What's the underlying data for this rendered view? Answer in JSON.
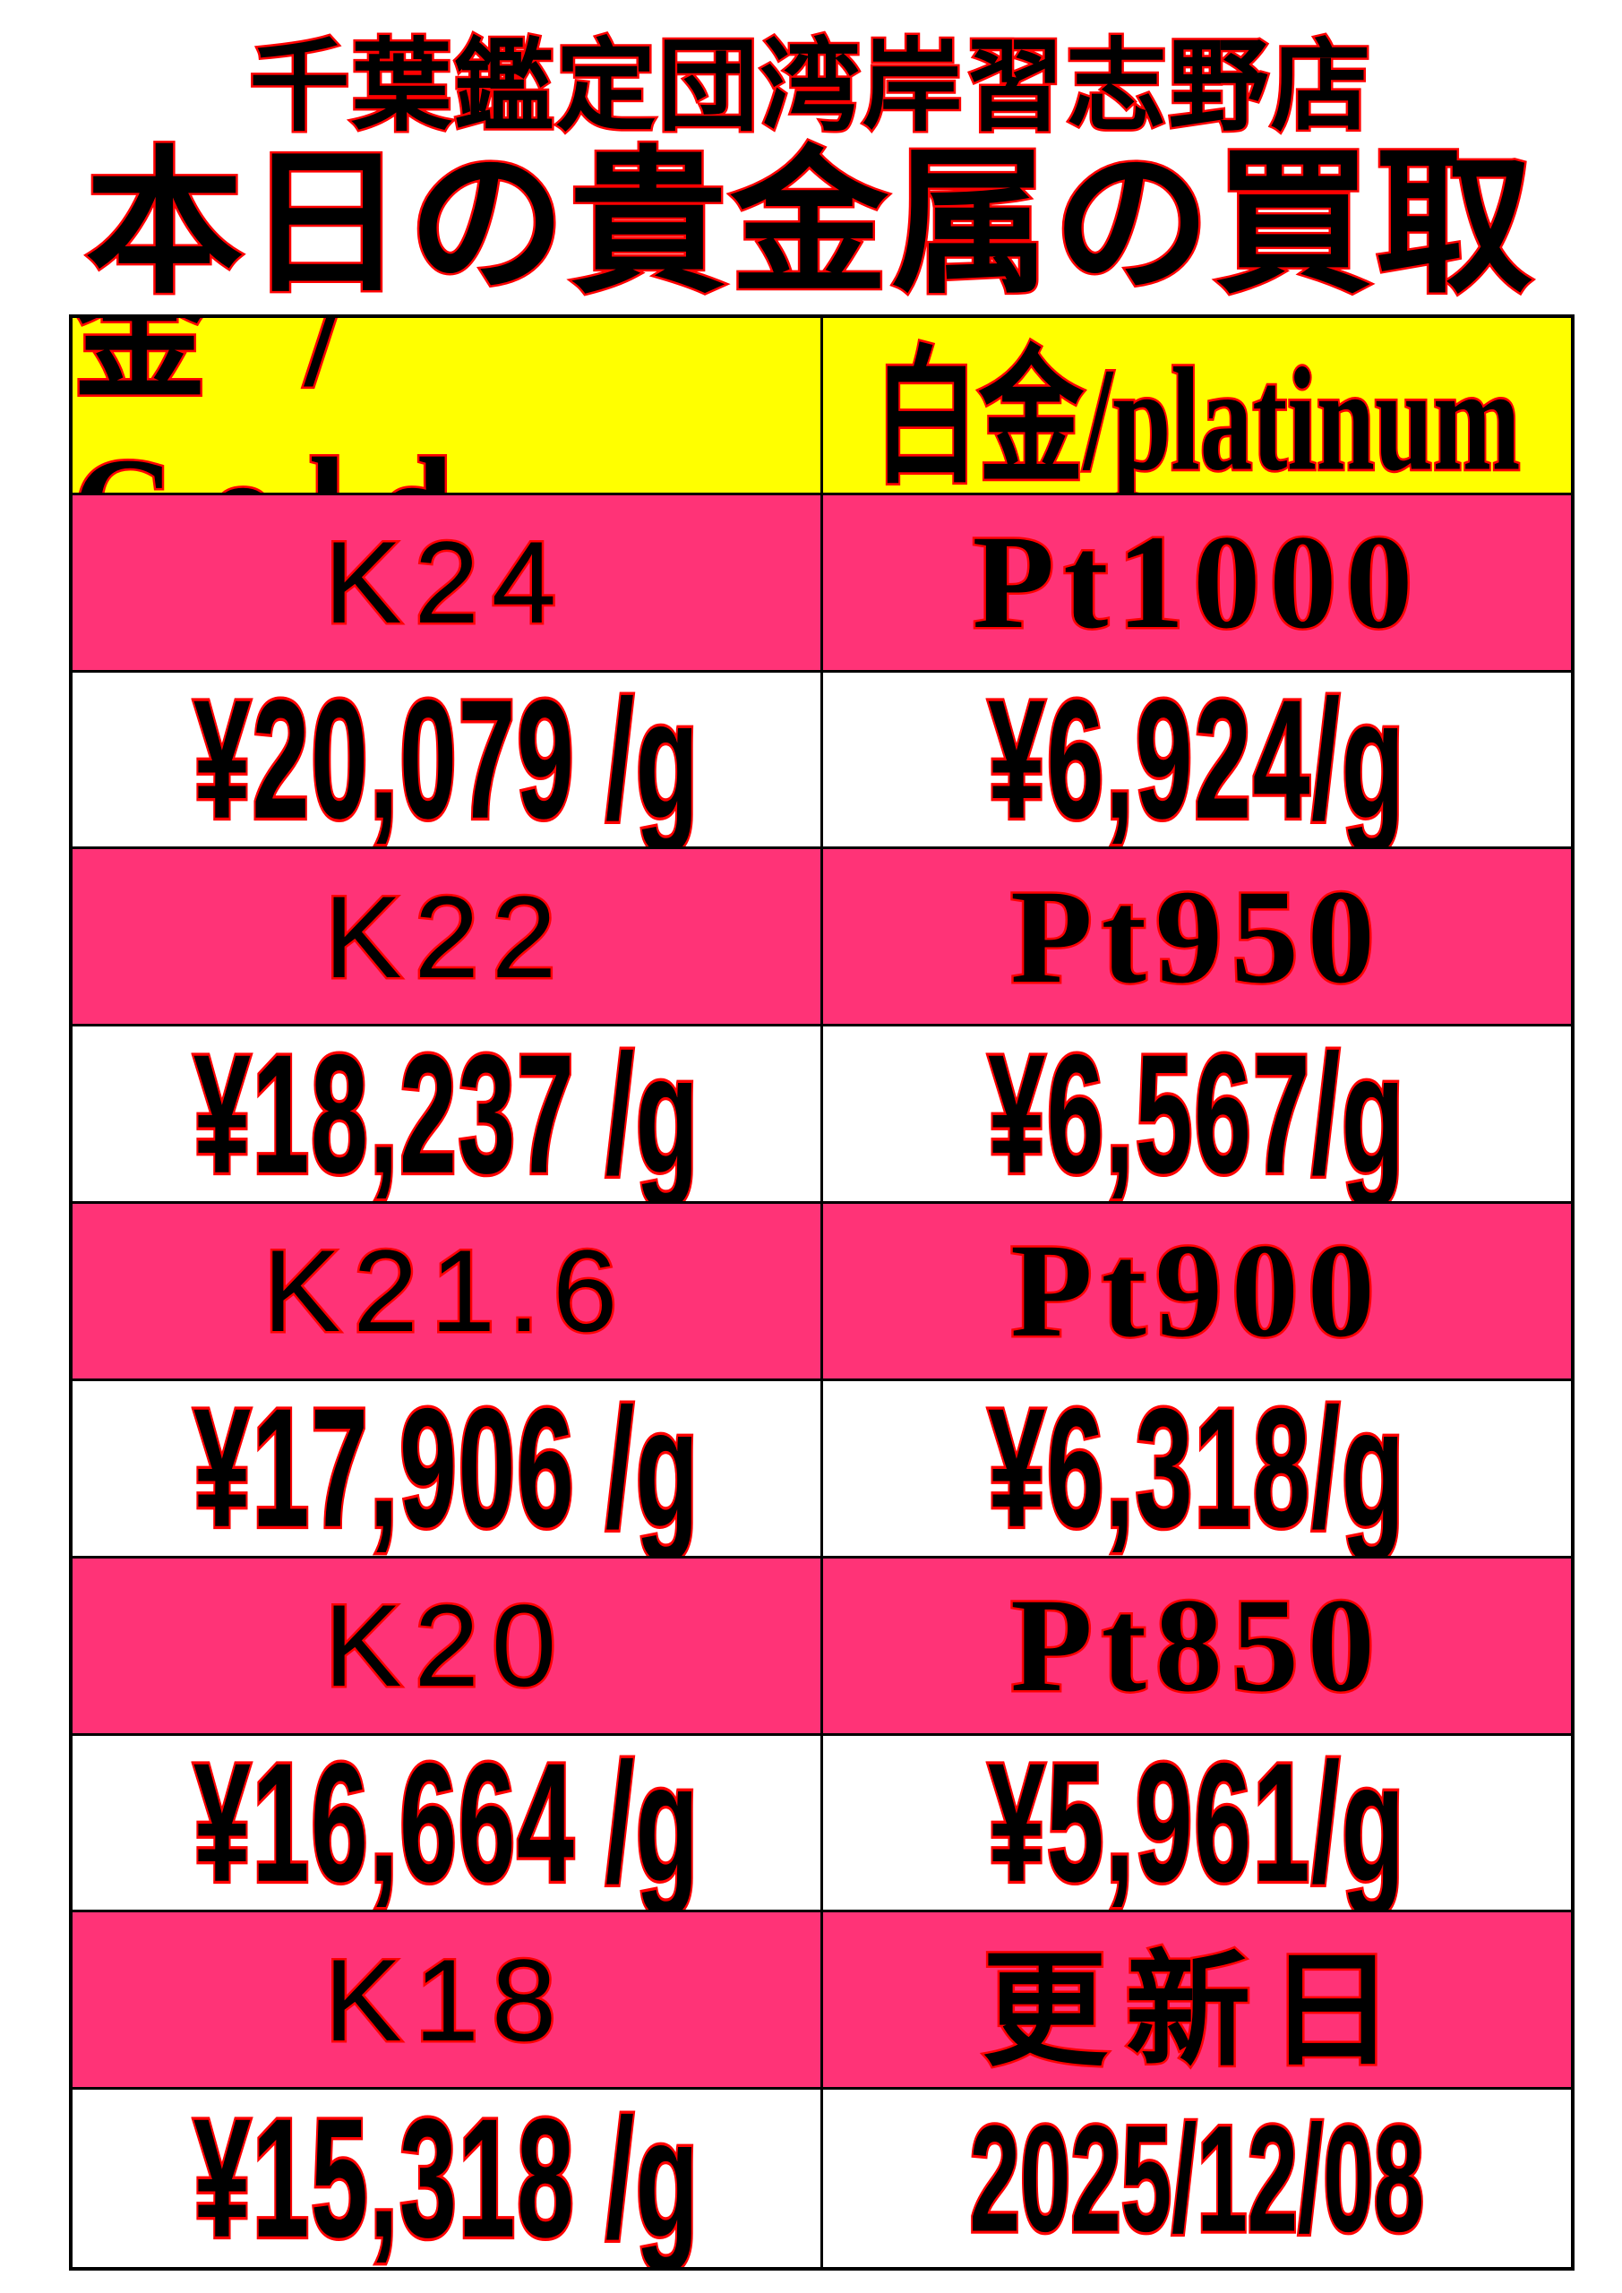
{
  "shop_name": "千葉鑑定団湾岸習志野店",
  "title": "本日の貴金属の買取",
  "colors": {
    "header_bg": "#ffff00",
    "grade_bg": "#ff3377",
    "price_bg": "#ffffff",
    "text_fill": "#000000",
    "text_outline": "#ff0000"
  },
  "headers": {
    "gold": "金 / Gold",
    "platinum": "白金/platinum"
  },
  "rows": [
    {
      "gold_grade": "K24",
      "gold_price": "¥20,079 /g",
      "plat_grade": "Pt1000",
      "plat_price": "¥6,924/g"
    },
    {
      "gold_grade": "K22",
      "gold_price": "¥18,237 /g",
      "plat_grade": "Pt950",
      "plat_price": "¥6,567/g"
    },
    {
      "gold_grade": "K21.6",
      "gold_price": "¥17,906 /g",
      "plat_grade": "Pt900",
      "plat_price": "¥6,318/g"
    },
    {
      "gold_grade": "K20",
      "gold_price": "¥16,664 /g",
      "plat_grade": "Pt850",
      "plat_price": "¥5,961/g"
    },
    {
      "gold_grade": "K18",
      "gold_price": "¥15,318 /g"
    }
  ],
  "update": {
    "label": "更新日",
    "date": "2025/12/08"
  }
}
